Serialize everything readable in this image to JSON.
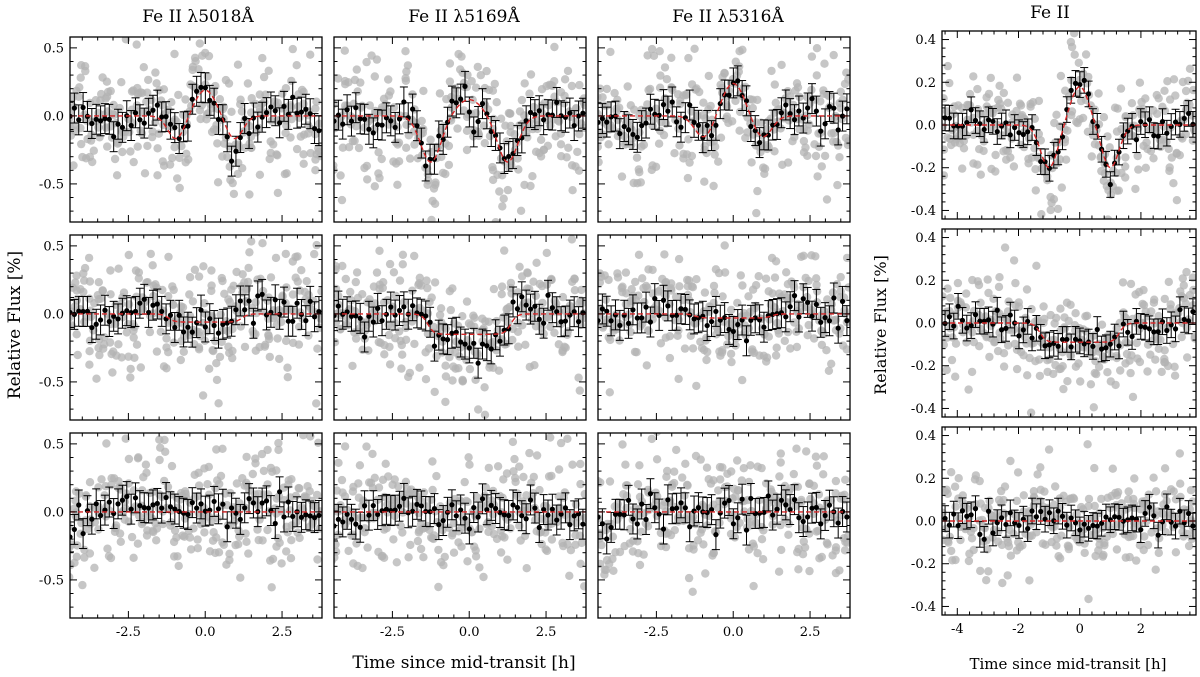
{
  "figure": {
    "column_titles": [
      "Fe II λ5018Å",
      "Fe II λ5169Å",
      "Fe II λ5316Å",
      "Fe II"
    ],
    "left_ylabel": "Relative Flux [%]",
    "right_ylabel": "Relative Flux [%]",
    "left_xlabel": "Time since mid-transit [h]",
    "right_xlabel": "Time since mid-transit [h]"
  },
  "chart_data": {
    "type": "scatter",
    "description_series": [
      "unbinned points (grey)",
      "binned points with error bars (black)",
      "model (red dashed)"
    ],
    "left_grid": {
      "xlim": [
        -4.4,
        3.8
      ],
      "ylim": [
        -0.78,
        0.58
      ],
      "xticks": [
        -2.5,
        0.0,
        2.5
      ],
      "xtick_labels": [
        "-2.5",
        "0.0",
        "2.5"
      ],
      "yticks": [
        -0.5,
        0.0,
        0.5
      ],
      "ytick_labels": [
        "-0.5",
        "0.0",
        "0.5"
      ]
    },
    "right_column": {
      "xlim": [
        -4.5,
        3.8
      ],
      "ylim": [
        -0.44,
        0.44
      ],
      "xticks": [
        -4,
        -2,
        0,
        2
      ],
      "xtick_labels": [
        "-4",
        "-2",
        "0",
        "2"
      ],
      "yticks": [
        -0.4,
        -0.2,
        0.0,
        0.2,
        0.4
      ],
      "ytick_labels": [
        "-0.4",
        "-0.2",
        "0.0",
        "0.2",
        "0.4"
      ]
    },
    "rows": [
      "top",
      "middle",
      "bottom"
    ],
    "model_parameters": {
      "top": {
        "5018": {
          "peak": 0.19,
          "peak_width": 0.33,
          "dip": 0.17,
          "dip_center": 0.95,
          "dip_width": 0.27
        },
        "5169": {
          "peak": 0.12,
          "peak_width": 0.4,
          "dip": 0.34,
          "dip_center": 1.25,
          "dip_width": 0.33
        },
        "5316": {
          "peak": 0.24,
          "peak_width": 0.36,
          "dip": 0.16,
          "dip_center": 0.95,
          "dip_width": 0.3
        },
        "combined": {
          "peak": 0.18,
          "peak_width": 0.3,
          "dip": 0.2,
          "dip_center": 1.0,
          "dip_width": 0.28
        }
      },
      "middle": {
        "5018": {
          "flat_depth": 0.06,
          "half_width": 1.2
        },
        "5169": {
          "flat_depth": 0.15,
          "half_width": 1.35
        },
        "5316": {
          "flat_depth": 0.03,
          "half_width": 1.25
        },
        "combined": {
          "flat_depth": 0.09,
          "half_width": 1.3
        }
      },
      "bottom": {
        "5018": {
          "flat_depth": 0.0,
          "half_width": 1.3
        },
        "5169": {
          "flat_depth": 0.0,
          "half_width": 1.3
        },
        "5316": {
          "flat_depth": 0.0,
          "half_width": 1.3
        },
        "combined": {
          "flat_depth": 0.0,
          "half_width": 1.3
        }
      }
    },
    "binned_noise_amplitude": 0.08,
    "binned_noise_amplitude_combined": 0.045,
    "raw_noise_amplitude": 0.25,
    "raw_noise_amplitude_combined": 0.14,
    "binned_error": 0.11,
    "binned_error_combined": 0.06,
    "time_range_data": [
      -4.4,
      3.7
    ],
    "n_binned": 58,
    "n_raw_per_binned": 3
  },
  "colors": {
    "raw": "#b3b3b3",
    "binned": "#000000",
    "model": "#d62728",
    "frame": "#000000"
  }
}
